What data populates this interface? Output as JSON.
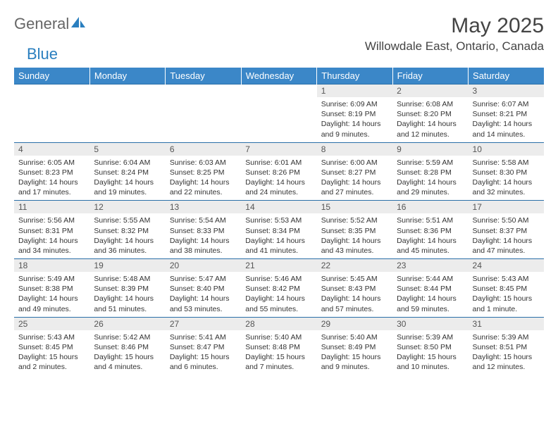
{
  "brand": {
    "part1": "General",
    "part2": "Blue"
  },
  "header": {
    "month_title": "May 2025",
    "location": "Willowdale East, Ontario, Canada"
  },
  "colors": {
    "header_bg": "#3b87c8",
    "header_text": "#ffffff",
    "rule": "#2a6fa8",
    "daynum_bg": "#ececec",
    "text": "#333333",
    "logo_gray": "#666666",
    "logo_blue": "#2a7fbf"
  },
  "day_names": [
    "Sunday",
    "Monday",
    "Tuesday",
    "Wednesday",
    "Thursday",
    "Friday",
    "Saturday"
  ],
  "weeks": [
    [
      null,
      null,
      null,
      null,
      {
        "n": "1",
        "sunrise": "6:09 AM",
        "sunset": "8:19 PM",
        "daylight": "14 hours and 9 minutes."
      },
      {
        "n": "2",
        "sunrise": "6:08 AM",
        "sunset": "8:20 PM",
        "daylight": "14 hours and 12 minutes."
      },
      {
        "n": "3",
        "sunrise": "6:07 AM",
        "sunset": "8:21 PM",
        "daylight": "14 hours and 14 minutes."
      }
    ],
    [
      {
        "n": "4",
        "sunrise": "6:05 AM",
        "sunset": "8:23 PM",
        "daylight": "14 hours and 17 minutes."
      },
      {
        "n": "5",
        "sunrise": "6:04 AM",
        "sunset": "8:24 PM",
        "daylight": "14 hours and 19 minutes."
      },
      {
        "n": "6",
        "sunrise": "6:03 AM",
        "sunset": "8:25 PM",
        "daylight": "14 hours and 22 minutes."
      },
      {
        "n": "7",
        "sunrise": "6:01 AM",
        "sunset": "8:26 PM",
        "daylight": "14 hours and 24 minutes."
      },
      {
        "n": "8",
        "sunrise": "6:00 AM",
        "sunset": "8:27 PM",
        "daylight": "14 hours and 27 minutes."
      },
      {
        "n": "9",
        "sunrise": "5:59 AM",
        "sunset": "8:28 PM",
        "daylight": "14 hours and 29 minutes."
      },
      {
        "n": "10",
        "sunrise": "5:58 AM",
        "sunset": "8:30 PM",
        "daylight": "14 hours and 32 minutes."
      }
    ],
    [
      {
        "n": "11",
        "sunrise": "5:56 AM",
        "sunset": "8:31 PM",
        "daylight": "14 hours and 34 minutes."
      },
      {
        "n": "12",
        "sunrise": "5:55 AM",
        "sunset": "8:32 PM",
        "daylight": "14 hours and 36 minutes."
      },
      {
        "n": "13",
        "sunrise": "5:54 AM",
        "sunset": "8:33 PM",
        "daylight": "14 hours and 38 minutes."
      },
      {
        "n": "14",
        "sunrise": "5:53 AM",
        "sunset": "8:34 PM",
        "daylight": "14 hours and 41 minutes."
      },
      {
        "n": "15",
        "sunrise": "5:52 AM",
        "sunset": "8:35 PM",
        "daylight": "14 hours and 43 minutes."
      },
      {
        "n": "16",
        "sunrise": "5:51 AM",
        "sunset": "8:36 PM",
        "daylight": "14 hours and 45 minutes."
      },
      {
        "n": "17",
        "sunrise": "5:50 AM",
        "sunset": "8:37 PM",
        "daylight": "14 hours and 47 minutes."
      }
    ],
    [
      {
        "n": "18",
        "sunrise": "5:49 AM",
        "sunset": "8:38 PM",
        "daylight": "14 hours and 49 minutes."
      },
      {
        "n": "19",
        "sunrise": "5:48 AM",
        "sunset": "8:39 PM",
        "daylight": "14 hours and 51 minutes."
      },
      {
        "n": "20",
        "sunrise": "5:47 AM",
        "sunset": "8:40 PM",
        "daylight": "14 hours and 53 minutes."
      },
      {
        "n": "21",
        "sunrise": "5:46 AM",
        "sunset": "8:42 PM",
        "daylight": "14 hours and 55 minutes."
      },
      {
        "n": "22",
        "sunrise": "5:45 AM",
        "sunset": "8:43 PM",
        "daylight": "14 hours and 57 minutes."
      },
      {
        "n": "23",
        "sunrise": "5:44 AM",
        "sunset": "8:44 PM",
        "daylight": "14 hours and 59 minutes."
      },
      {
        "n": "24",
        "sunrise": "5:43 AM",
        "sunset": "8:45 PM",
        "daylight": "15 hours and 1 minute."
      }
    ],
    [
      {
        "n": "25",
        "sunrise": "5:43 AM",
        "sunset": "8:45 PM",
        "daylight": "15 hours and 2 minutes."
      },
      {
        "n": "26",
        "sunrise": "5:42 AM",
        "sunset": "8:46 PM",
        "daylight": "15 hours and 4 minutes."
      },
      {
        "n": "27",
        "sunrise": "5:41 AM",
        "sunset": "8:47 PM",
        "daylight": "15 hours and 6 minutes."
      },
      {
        "n": "28",
        "sunrise": "5:40 AM",
        "sunset": "8:48 PM",
        "daylight": "15 hours and 7 minutes."
      },
      {
        "n": "29",
        "sunrise": "5:40 AM",
        "sunset": "8:49 PM",
        "daylight": "15 hours and 9 minutes."
      },
      {
        "n": "30",
        "sunrise": "5:39 AM",
        "sunset": "8:50 PM",
        "daylight": "15 hours and 10 minutes."
      },
      {
        "n": "31",
        "sunrise": "5:39 AM",
        "sunset": "8:51 PM",
        "daylight": "15 hours and 12 minutes."
      }
    ]
  ],
  "labels": {
    "sunrise": "Sunrise:",
    "sunset": "Sunset:",
    "daylight": "Daylight:"
  }
}
